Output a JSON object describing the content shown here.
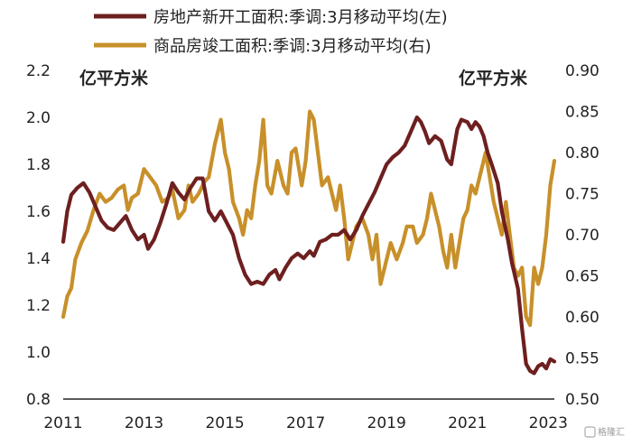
{
  "chart_data": {
    "type": "line",
    "x_ticks": [
      "2011",
      "2013",
      "2015",
      "2017",
      "2019",
      "2021",
      "2023"
    ],
    "x_range": [
      2011.0,
      2023.15
    ],
    "y_left": {
      "unit": "亿平方米",
      "range": [
        0.8,
        2.2
      ],
      "ticks": [
        "0.8",
        "1.0",
        "1.2",
        "1.4",
        "1.6",
        "1.8",
        "2.0",
        "2.2"
      ]
    },
    "y_right": {
      "unit": "亿平方米",
      "range": [
        0.5,
        0.9
      ],
      "ticks": [
        "0.50",
        "0.55",
        "0.60",
        "0.65",
        "0.70",
        "0.75",
        "0.80",
        "0.85",
        "0.90"
      ]
    },
    "series": [
      {
        "name": "房地产新开工面积:季调:3月移动平均(左)",
        "axis": "left",
        "color": "#6e1f1f",
        "points": [
          [
            2011.0,
            1.47
          ],
          [
            2011.1,
            1.6
          ],
          [
            2011.2,
            1.67
          ],
          [
            2011.35,
            1.7
          ],
          [
            2011.5,
            1.72
          ],
          [
            2011.65,
            1.68
          ],
          [
            2011.8,
            1.62
          ],
          [
            2011.95,
            1.56
          ],
          [
            2012.1,
            1.53
          ],
          [
            2012.25,
            1.52
          ],
          [
            2012.4,
            1.55
          ],
          [
            2012.55,
            1.58
          ],
          [
            2012.7,
            1.52
          ],
          [
            2012.85,
            1.48
          ],
          [
            2013.0,
            1.5
          ],
          [
            2013.1,
            1.44
          ],
          [
            2013.25,
            1.48
          ],
          [
            2013.4,
            1.55
          ],
          [
            2013.55,
            1.63
          ],
          [
            2013.7,
            1.72
          ],
          [
            2013.85,
            1.68
          ],
          [
            2014.0,
            1.65
          ],
          [
            2014.15,
            1.7
          ],
          [
            2014.3,
            1.74
          ],
          [
            2014.45,
            1.74
          ],
          [
            2014.6,
            1.6
          ],
          [
            2014.75,
            1.56
          ],
          [
            2014.9,
            1.6
          ],
          [
            2015.05,
            1.55
          ],
          [
            2015.2,
            1.5
          ],
          [
            2015.35,
            1.4
          ],
          [
            2015.5,
            1.33
          ],
          [
            2015.65,
            1.29
          ],
          [
            2015.8,
            1.3
          ],
          [
            2015.95,
            1.29
          ],
          [
            2016.1,
            1.33
          ],
          [
            2016.25,
            1.35
          ],
          [
            2016.35,
            1.31
          ],
          [
            2016.5,
            1.36
          ],
          [
            2016.65,
            1.4
          ],
          [
            2016.8,
            1.42
          ],
          [
            2016.95,
            1.4
          ],
          [
            2017.1,
            1.43
          ],
          [
            2017.2,
            1.41
          ],
          [
            2017.35,
            1.47
          ],
          [
            2017.5,
            1.48
          ],
          [
            2017.65,
            1.5
          ],
          [
            2017.8,
            1.5
          ],
          [
            2017.95,
            1.52
          ],
          [
            2018.1,
            1.48
          ],
          [
            2018.25,
            1.52
          ],
          [
            2018.4,
            1.58
          ],
          [
            2018.55,
            1.63
          ],
          [
            2018.7,
            1.68
          ],
          [
            2018.85,
            1.74
          ],
          [
            2019.0,
            1.8
          ],
          [
            2019.15,
            1.83
          ],
          [
            2019.3,
            1.85
          ],
          [
            2019.45,
            1.88
          ],
          [
            2019.6,
            1.94
          ],
          [
            2019.75,
            2.0
          ],
          [
            2019.85,
            1.98
          ],
          [
            2019.95,
            1.94
          ],
          [
            2020.05,
            1.89
          ],
          [
            2020.2,
            1.92
          ],
          [
            2020.35,
            1.9
          ],
          [
            2020.5,
            1.82
          ],
          [
            2020.6,
            1.8
          ],
          [
            2020.75,
            1.95
          ],
          [
            2020.85,
            1.99
          ],
          [
            2021.0,
            1.98
          ],
          [
            2021.1,
            1.95
          ],
          [
            2021.2,
            1.98
          ],
          [
            2021.3,
            1.96
          ],
          [
            2021.4,
            1.92
          ],
          [
            2021.5,
            1.85
          ],
          [
            2021.6,
            1.8
          ],
          [
            2021.75,
            1.72
          ],
          [
            2021.85,
            1.6
          ],
          [
            2022.0,
            1.48
          ],
          [
            2022.1,
            1.38
          ],
          [
            2022.25,
            1.27
          ],
          [
            2022.35,
            1.1
          ],
          [
            2022.45,
            0.95
          ],
          [
            2022.55,
            0.92
          ],
          [
            2022.65,
            0.91
          ],
          [
            2022.75,
            0.94
          ],
          [
            2022.85,
            0.95
          ],
          [
            2022.95,
            0.93
          ],
          [
            2023.05,
            0.97
          ],
          [
            2023.15,
            0.96
          ]
        ]
      },
      {
        "name": "商品房竣工面积:季调:3月移动平均(右)",
        "axis": "right",
        "color": "#c8902a",
        "points": [
          [
            2011.0,
            0.6
          ],
          [
            2011.1,
            0.625
          ],
          [
            2011.2,
            0.635
          ],
          [
            2011.3,
            0.67
          ],
          [
            2011.45,
            0.69
          ],
          [
            2011.6,
            0.705
          ],
          [
            2011.75,
            0.73
          ],
          [
            2011.9,
            0.75
          ],
          [
            2012.05,
            0.74
          ],
          [
            2012.2,
            0.745
          ],
          [
            2012.35,
            0.755
          ],
          [
            2012.5,
            0.76
          ],
          [
            2012.6,
            0.73
          ],
          [
            2012.7,
            0.745
          ],
          [
            2012.85,
            0.75
          ],
          [
            2013.0,
            0.78
          ],
          [
            2013.15,
            0.77
          ],
          [
            2013.3,
            0.76
          ],
          [
            2013.45,
            0.74
          ],
          [
            2013.6,
            0.745
          ],
          [
            2013.7,
            0.755
          ],
          [
            2013.85,
            0.72
          ],
          [
            2014.0,
            0.73
          ],
          [
            2014.1,
            0.76
          ],
          [
            2014.2,
            0.74
          ],
          [
            2014.35,
            0.75
          ],
          [
            2014.5,
            0.765
          ],
          [
            2014.6,
            0.77
          ],
          [
            2014.75,
            0.81
          ],
          [
            2014.9,
            0.84
          ],
          [
            2015.0,
            0.8
          ],
          [
            2015.1,
            0.78
          ],
          [
            2015.2,
            0.74
          ],
          [
            2015.35,
            0.72
          ],
          [
            2015.45,
            0.7
          ],
          [
            2015.55,
            0.73
          ],
          [
            2015.65,
            0.72
          ],
          [
            2015.75,
            0.76
          ],
          [
            2015.85,
            0.79
          ],
          [
            2015.95,
            0.84
          ],
          [
            2016.05,
            0.76
          ],
          [
            2016.15,
            0.75
          ],
          [
            2016.3,
            0.79
          ],
          [
            2016.45,
            0.76
          ],
          [
            2016.55,
            0.75
          ],
          [
            2016.65,
            0.8
          ],
          [
            2016.75,
            0.805
          ],
          [
            2016.9,
            0.76
          ],
          [
            2017.0,
            0.79
          ],
          [
            2017.1,
            0.85
          ],
          [
            2017.2,
            0.84
          ],
          [
            2017.3,
            0.8
          ],
          [
            2017.4,
            0.76
          ],
          [
            2017.55,
            0.77
          ],
          [
            2017.65,
            0.75
          ],
          [
            2017.75,
            0.73
          ],
          [
            2017.85,
            0.76
          ],
          [
            2017.95,
            0.72
          ],
          [
            2018.05,
            0.67
          ],
          [
            2018.15,
            0.69
          ],
          [
            2018.25,
            0.71
          ],
          [
            2018.4,
            0.72
          ],
          [
            2018.55,
            0.7
          ],
          [
            2018.65,
            0.67
          ],
          [
            2018.75,
            0.7
          ],
          [
            2018.85,
            0.64
          ],
          [
            2018.95,
            0.66
          ],
          [
            2019.1,
            0.69
          ],
          [
            2019.25,
            0.67
          ],
          [
            2019.4,
            0.69
          ],
          [
            2019.5,
            0.71
          ],
          [
            2019.65,
            0.71
          ],
          [
            2019.75,
            0.69
          ],
          [
            2019.9,
            0.7
          ],
          [
            2020.0,
            0.72
          ],
          [
            2020.1,
            0.75
          ],
          [
            2020.2,
            0.73
          ],
          [
            2020.3,
            0.71
          ],
          [
            2020.4,
            0.68
          ],
          [
            2020.5,
            0.66
          ],
          [
            2020.6,
            0.7
          ],
          [
            2020.7,
            0.66
          ],
          [
            2020.8,
            0.69
          ],
          [
            2020.9,
            0.72
          ],
          [
            2021.0,
            0.73
          ],
          [
            2021.1,
            0.76
          ],
          [
            2021.2,
            0.75
          ],
          [
            2021.3,
            0.77
          ],
          [
            2021.45,
            0.8
          ],
          [
            2021.55,
            0.77
          ],
          [
            2021.65,
            0.74
          ],
          [
            2021.75,
            0.72
          ],
          [
            2021.85,
            0.7
          ],
          [
            2021.95,
            0.74
          ],
          [
            2022.05,
            0.7
          ],
          [
            2022.15,
            0.66
          ],
          [
            2022.25,
            0.65
          ],
          [
            2022.35,
            0.66
          ],
          [
            2022.45,
            0.6
          ],
          [
            2022.55,
            0.59
          ],
          [
            2022.65,
            0.66
          ],
          [
            2022.75,
            0.64
          ],
          [
            2022.85,
            0.66
          ],
          [
            2022.95,
            0.7
          ],
          [
            2023.05,
            0.76
          ],
          [
            2023.15,
            0.79
          ]
        ]
      }
    ]
  },
  "watermark": "格隆汇"
}
